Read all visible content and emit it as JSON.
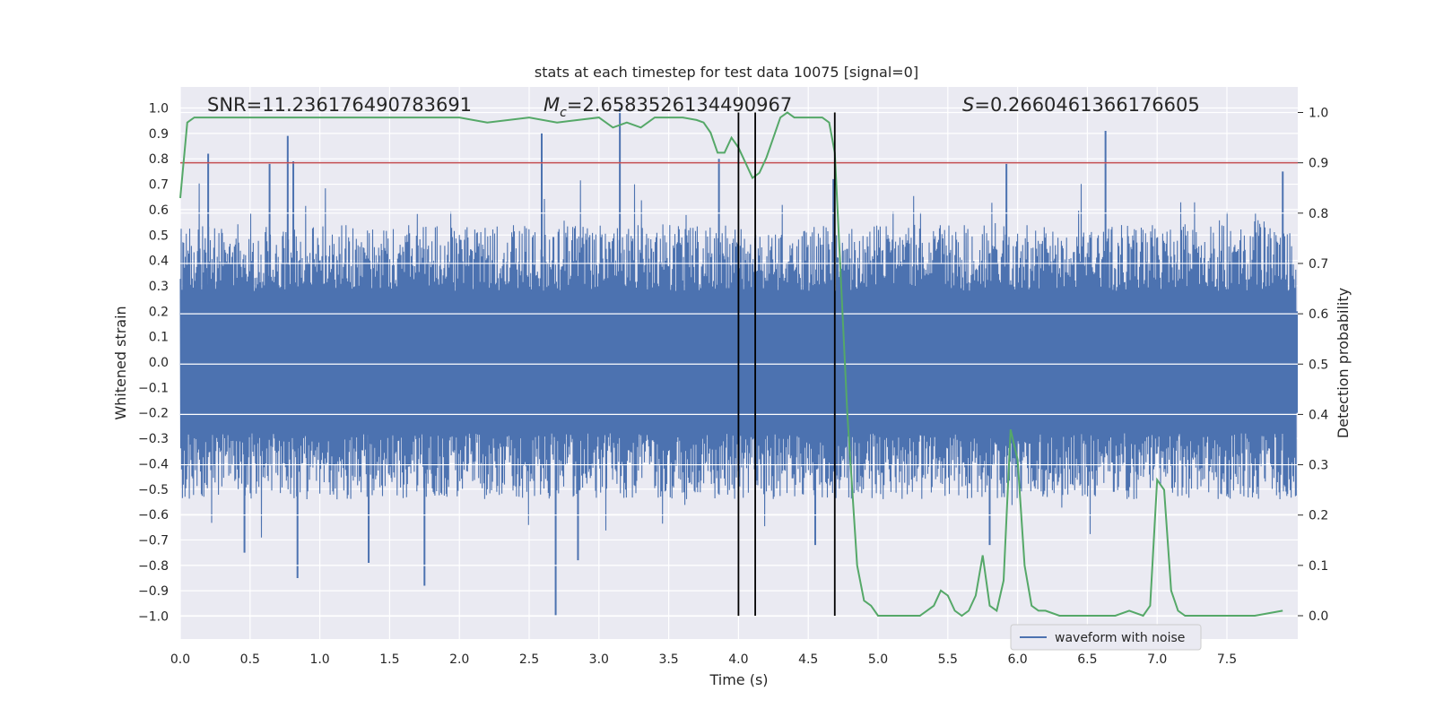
{
  "chart_data": {
    "type": "line",
    "title": "stats at each timestep for test data 10075 [signal=0]",
    "xlabel": "Time (s)",
    "ylabel": "Whitened strain",
    "y2label": "Detection probability",
    "xlim": [
      0,
      8.0
    ],
    "ylim": [
      -1.1,
      1.05
    ],
    "y2lim": [
      -0.05,
      1.04
    ],
    "xticks": [
      "0.0",
      "0.5",
      "1.0",
      "1.5",
      "2.0",
      "2.5",
      "3.0",
      "3.5",
      "4.0",
      "4.5",
      "5.0",
      "5.5",
      "6.0",
      "6.5",
      "7.0",
      "7.5"
    ],
    "yticks": [
      "1.0",
      "0.9",
      "0.8",
      "0.7",
      "0.6",
      "0.5",
      "0.4",
      "0.3",
      "0.2",
      "0.1",
      "0.0",
      "-0.1",
      "-0.2",
      "-0.3",
      "-0.4",
      "-0.5",
      "-0.6",
      "-0.7",
      "-0.8",
      "-0.9",
      "-1.0"
    ],
    "y2ticks": [
      "1.0",
      "0.9",
      "0.8",
      "0.7",
      "0.6",
      "0.5",
      "0.4",
      "0.3",
      "0.2",
      "0.1",
      "0.0"
    ],
    "annotations": {
      "snr": "SNR=11.236176490783691",
      "mc_symbol": "M",
      "mc_sub": "c",
      "mc_value": "=2.6583526134490967",
      "s_symbol": "S",
      "s_value": "=0.2660461366176605"
    },
    "threshold": {
      "y2": 0.9,
      "color": "#c44e52"
    },
    "vlines": {
      "x": [
        4.0,
        4.12,
        4.69
      ],
      "color": "#000000"
    },
    "waveform": {
      "name": "waveform with noise",
      "color": "#4c72b0",
      "description_envelope": "dense noise, typical amplitude 0.35-0.5",
      "peaks": [
        {
          "x": 0.2,
          "y": 0.82
        },
        {
          "x": 0.64,
          "y": 0.78
        },
        {
          "x": 0.77,
          "y": 0.89
        },
        {
          "x": 0.81,
          "y": 0.79
        },
        {
          "x": 2.59,
          "y": 0.9
        },
        {
          "x": 3.15,
          "y": 1.0
        },
        {
          "x": 3.86,
          "y": 0.8
        },
        {
          "x": 4.68,
          "y": 0.72
        },
        {
          "x": 5.92,
          "y": 0.78
        },
        {
          "x": 6.63,
          "y": 0.91
        },
        {
          "x": 7.9,
          "y": 0.75
        },
        {
          "x": 0.46,
          "y": -0.75
        },
        {
          "x": 0.84,
          "y": -0.85
        },
        {
          "x": 1.35,
          "y": -0.79
        },
        {
          "x": 1.75,
          "y": -0.88
        },
        {
          "x": 2.69,
          "y": -1.0
        },
        {
          "x": 2.85,
          "y": -0.78
        },
        {
          "x": 4.55,
          "y": -0.72
        },
        {
          "x": 5.8,
          "y": -0.72
        }
      ]
    },
    "probability": {
      "name": "detection probability",
      "color": "#55a868",
      "x": [
        0.0,
        0.05,
        0.1,
        0.2,
        0.4,
        0.6,
        0.8,
        1.0,
        1.2,
        1.4,
        1.6,
        1.8,
        2.0,
        2.2,
        2.5,
        2.7,
        3.0,
        3.1,
        3.2,
        3.3,
        3.4,
        3.6,
        3.7,
        3.75,
        3.8,
        3.85,
        3.9,
        3.95,
        4.0,
        4.05,
        4.1,
        4.15,
        4.2,
        4.25,
        4.3,
        4.35,
        4.4,
        4.5,
        4.55,
        4.6,
        4.65,
        4.69,
        4.72,
        4.78,
        4.85,
        4.9,
        4.95,
        5.0,
        5.1,
        5.2,
        5.3,
        5.35,
        5.4,
        5.45,
        5.5,
        5.55,
        5.6,
        5.65,
        5.7,
        5.75,
        5.8,
        5.85,
        5.9,
        5.95,
        6.0,
        6.05,
        6.1,
        6.15,
        6.2,
        6.3,
        6.5,
        6.7,
        6.8,
        6.9,
        6.95,
        7.0,
        7.05,
        7.1,
        7.15,
        7.2,
        7.3,
        7.5,
        7.7,
        7.9
      ],
      "y": [
        0.83,
        0.98,
        0.99,
        0.99,
        0.99,
        0.99,
        0.99,
        0.99,
        0.99,
        0.99,
        0.99,
        0.99,
        0.99,
        0.98,
        0.99,
        0.98,
        0.99,
        0.97,
        0.98,
        0.97,
        0.99,
        0.99,
        0.985,
        0.98,
        0.96,
        0.92,
        0.92,
        0.95,
        0.93,
        0.9,
        0.87,
        0.88,
        0.91,
        0.95,
        0.99,
        1.0,
        0.99,
        0.99,
        0.99,
        0.99,
        0.98,
        0.92,
        0.75,
        0.4,
        0.1,
        0.03,
        0.02,
        0.0,
        0.0,
        0.0,
        0.0,
        0.01,
        0.02,
        0.05,
        0.04,
        0.01,
        0.0,
        0.01,
        0.04,
        0.12,
        0.02,
        0.01,
        0.07,
        0.37,
        0.31,
        0.1,
        0.02,
        0.01,
        0.01,
        0.0,
        0.0,
        0.0,
        0.01,
        0.0,
        0.02,
        0.27,
        0.25,
        0.05,
        0.01,
        0.0,
        0.0,
        0.0,
        0.0,
        0.01
      ]
    },
    "legend": {
      "entries": [
        "waveform with noise"
      ],
      "position": "lower-right"
    }
  }
}
